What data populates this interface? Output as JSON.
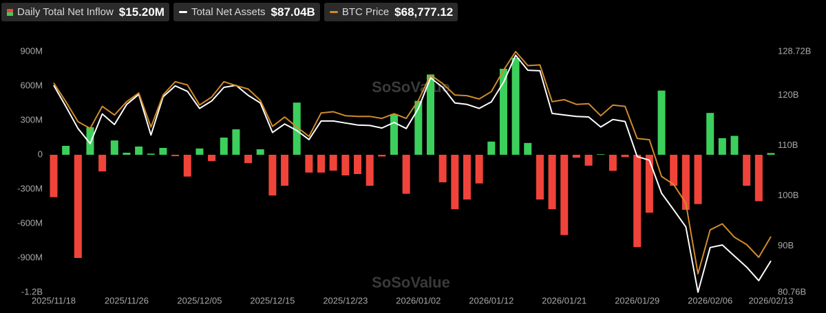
{
  "chart_data": {
    "type": "bar-line",
    "watermark": "SoSoValue",
    "categories": [
      "2025/11/18",
      null,
      null,
      null,
      null,
      null,
      "2025/11/26",
      null,
      null,
      null,
      null,
      null,
      "2025/12/05",
      null,
      null,
      null,
      null,
      null,
      "2025/12/15",
      null,
      null,
      null,
      null,
      null,
      "2025/12/23",
      null,
      null,
      null,
      null,
      null,
      "2026/01/02",
      null,
      null,
      null,
      null,
      null,
      "2026/01/12",
      null,
      null,
      null,
      null,
      null,
      "2026/01/21",
      null,
      null,
      null,
      null,
      null,
      "2026/01/29",
      null,
      null,
      null,
      null,
      null,
      "2026/02/06",
      null,
      null,
      null,
      null,
      "2026/02/13"
    ],
    "ylim": [
      -1200,
      900
    ],
    "yticks": [
      {
        "value": 900,
        "label": "900M"
      },
      {
        "value": 600,
        "label": "600M"
      },
      {
        "value": 300,
        "label": "300M"
      },
      0,
      {
        "value": -300,
        "label": "-300M"
      },
      {
        "value": -600,
        "label": "-600M"
      },
      {
        "value": -900,
        "label": "-900M"
      },
      {
        "value": -1200,
        "label": "-1.2B"
      }
    ],
    "y2lim": [
      80.76,
      128.72
    ],
    "y2ticks": [
      {
        "value": 128.72,
        "label": "128.72B"
      },
      {
        "value": 120,
        "label": "120B"
      },
      {
        "value": 110,
        "label": "110B"
      },
      {
        "value": 100,
        "label": "100B"
      },
      {
        "value": 90,
        "label": "90B"
      },
      {
        "value": 80.76,
        "label": "80.76B"
      }
    ],
    "series": [
      {
        "name": "Daily Total Net Inflow",
        "legend_value": "$15.20M",
        "type": "bar",
        "color_positive": "#3ccf5c",
        "color_negative": "#f0443a",
        "values": [
          -370,
          78,
          -900,
          240,
          -145,
          125,
          18,
          72,
          10,
          60,
          -12,
          -190,
          55,
          -55,
          150,
          222,
          -72,
          48,
          -355,
          -270,
          455,
          -155,
          -155,
          -138,
          -180,
          -168,
          -270,
          -15,
          355,
          -340,
          470,
          700,
          -240,
          -475,
          -390,
          -250,
          115,
          750,
          845,
          103,
          -390,
          -475,
          -700,
          -25,
          -95,
          5,
          -140,
          -20,
          -805,
          -505,
          560,
          -270,
          -480,
          -430,
          365,
          145,
          165,
          -270,
          -405,
          15.2
        ]
      },
      {
        "name": "Total Net Assets",
        "legend_value": "$87.04B",
        "type": "line",
        "axis": "y2",
        "color": "#ffffff",
        "values": [
          122.0,
          117.8,
          113.4,
          110.4,
          116.3,
          114.2,
          118.2,
          120.2,
          112.1,
          119.7,
          121.9,
          120.8,
          117.4,
          118.9,
          121.6,
          122.0,
          120.0,
          118.5,
          112.6,
          114.3,
          113.0,
          111.2,
          114.9,
          114.9,
          114.5,
          114.1,
          114.0,
          113.5,
          114.6,
          113.4,
          117.4,
          123.5,
          121.6,
          118.5,
          118.2,
          117.4,
          118.7,
          122.6,
          128.0,
          125.0,
          124.9,
          116.4,
          116.1,
          115.8,
          115.7,
          113.7,
          115.2,
          114.8,
          107.8,
          107.1,
          100.5,
          97.2,
          93.8,
          80.8,
          89.7,
          90.2,
          88.0,
          85.8,
          83.1,
          87.04
        ]
      },
      {
        "name": "BTC Price",
        "legend_value": "$68,777.12",
        "type": "line",
        "color": "#d18b2b",
        "values": [
          92378,
          89505,
          86427,
          85401,
          88787,
          87453,
          89505,
          90839,
          85606,
          90531,
          92583,
          92070,
          88992,
          90223,
          92583,
          91967,
          91454,
          89710,
          85709,
          87145,
          85606,
          84170,
          87761,
          87966,
          87350,
          87248,
          87248,
          86940,
          87658,
          86940,
          89710,
          93609,
          92275,
          90531,
          90428,
          89915,
          91044,
          94327,
          97200,
          95045,
          95148,
          89505,
          89813,
          89095,
          89197,
          87350,
          88992,
          88787,
          83862,
          83657,
          78014,
          76783,
          73910,
          63060,
          69806,
          70729,
          68677,
          67549,
          65600,
          68777.12
        ]
      }
    ]
  }
}
